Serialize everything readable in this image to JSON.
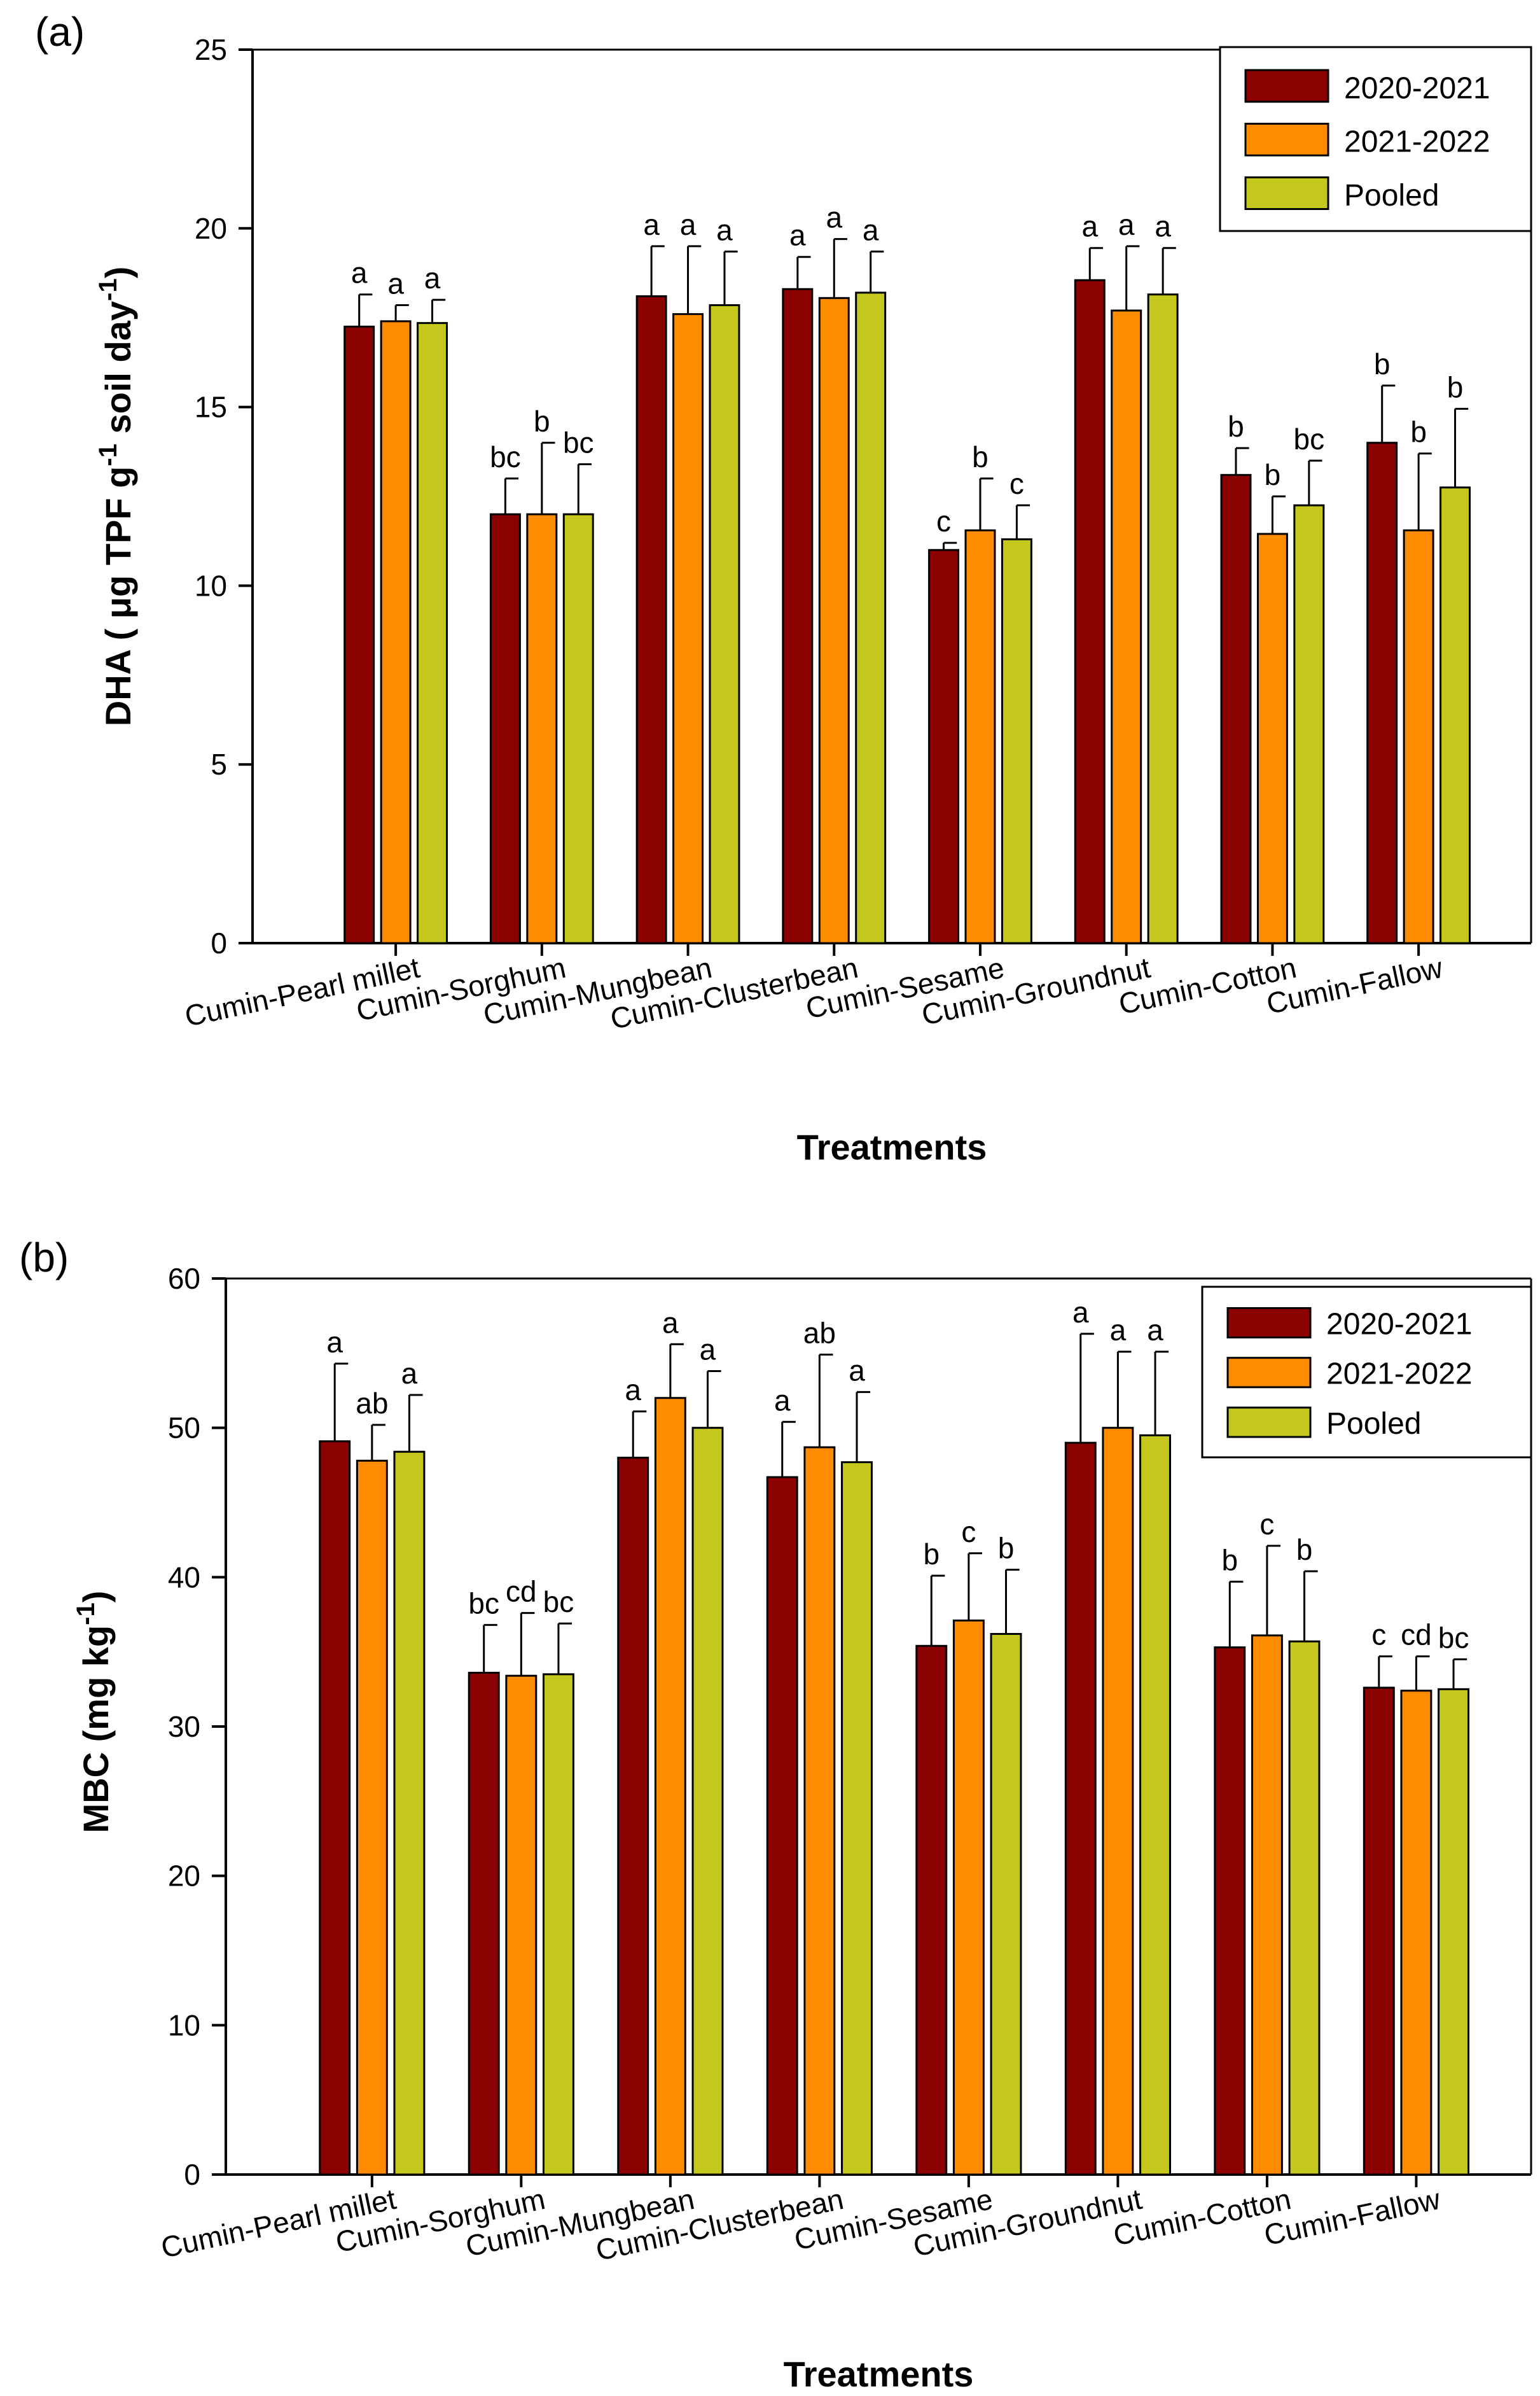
{
  "chart_data": [
    {
      "type": "bar",
      "panel_label": "(a)",
      "title": "",
      "xlabel": "Treatments",
      "ylabel": "DHA ( μg TPF g⁻¹ soil day⁻¹)",
      "ylabel_parts": {
        "base": "DHA ( μg TPF g",
        "sup1": "-1",
        "mid": " soil day",
        "sup2": "-1",
        "end": ")"
      },
      "ylim": [
        0,
        25
      ],
      "yticks": [
        0,
        5,
        10,
        15,
        20,
        25
      ],
      "categories": [
        "Cumin-Pearl millet",
        "Cumin-Sorghum",
        "Cumin-Mungbean",
        "Cumin-Clusterbean",
        "Cumin-Sesame",
        "Cumin-Groundnut",
        "Cumin-Cotton",
        "Cumin-Fallow"
      ],
      "legend_position": "top-right",
      "series": [
        {
          "name": "2020-2021",
          "color": "#8b0000",
          "values": [
            17.25,
            12.0,
            18.1,
            18.3,
            11.0,
            18.55,
            13.1,
            14.0
          ],
          "errors": [
            0.9,
            1.0,
            1.4,
            0.9,
            0.2,
            0.9,
            0.75,
            1.6
          ],
          "letters": [
            "a",
            "bc",
            "a",
            "a",
            "c",
            "a",
            "b",
            "b"
          ]
        },
        {
          "name": "2021-2022",
          "color": "#ff8c00",
          "values": [
            17.4,
            12.0,
            17.6,
            18.05,
            11.55,
            17.7,
            11.45,
            11.55
          ],
          "errors": [
            0.45,
            2.0,
            1.9,
            1.65,
            1.45,
            1.8,
            1.05,
            2.15
          ],
          "letters": [
            "a",
            "b",
            "a",
            "a",
            "b",
            "a",
            "b",
            "b"
          ]
        },
        {
          "name": "Pooled",
          "color": "#c4c81c",
          "values": [
            17.35,
            12.0,
            17.85,
            18.2,
            11.3,
            18.15,
            12.25,
            12.75
          ],
          "errors": [
            0.65,
            1.4,
            1.5,
            1.15,
            0.95,
            1.3,
            1.25,
            2.2
          ],
          "letters": [
            "a",
            "bc",
            "a",
            "a",
            "c",
            "a",
            "bc",
            "b"
          ]
        }
      ]
    },
    {
      "type": "bar",
      "panel_label": "(b)",
      "title": "",
      "xlabel": "Treatments",
      "ylabel": "MBC (mg kg⁻¹)",
      "ylabel_parts": {
        "base": "MBC (mg kg",
        "sup1": "-1",
        "end": ")"
      },
      "ylim": [
        0,
        60
      ],
      "yticks": [
        0,
        10,
        20,
        30,
        40,
        50,
        60
      ],
      "categories": [
        "Cumin-Pearl millet",
        "Cumin-Sorghum",
        "Cumin-Mungbean",
        "Cumin-Clusterbean",
        "Cumin-Sesame",
        "Cumin-Groundnut",
        "Cumin-Cotton",
        "Cumin-Fallow"
      ],
      "legend_position": "top-right",
      "series": [
        {
          "name": "2020-2021",
          "color": "#8b0000",
          "values": [
            49.1,
            33.6,
            48.0,
            46.7,
            35.4,
            49.0,
            35.3,
            32.6
          ],
          "errors": [
            5.2,
            3.2,
            3.1,
            3.7,
            4.7,
            7.3,
            4.4,
            2.1
          ],
          "letters": [
            "a",
            "bc",
            "a",
            "a",
            "b",
            "a",
            "b",
            "c"
          ]
        },
        {
          "name": "2021-2022",
          "color": "#ff8c00",
          "values": [
            47.8,
            33.4,
            52.0,
            48.7,
            37.1,
            50.0,
            36.1,
            32.4
          ],
          "errors": [
            2.4,
            4.2,
            3.6,
            6.2,
            4.5,
            5.1,
            6.0,
            2.3
          ],
          "letters": [
            "ab",
            "cd",
            "a",
            "ab",
            "c",
            "a",
            "c",
            "cd"
          ]
        },
        {
          "name": "Pooled",
          "color": "#c4c81c",
          "values": [
            48.4,
            33.5,
            50.0,
            47.7,
            36.2,
            49.5,
            35.7,
            32.5
          ],
          "errors": [
            3.8,
            3.4,
            3.8,
            4.7,
            4.3,
            5.6,
            4.7,
            2.0
          ],
          "letters": [
            "a",
            "bc",
            "a",
            "a",
            "b",
            "a",
            "b",
            "bc"
          ]
        }
      ]
    }
  ]
}
